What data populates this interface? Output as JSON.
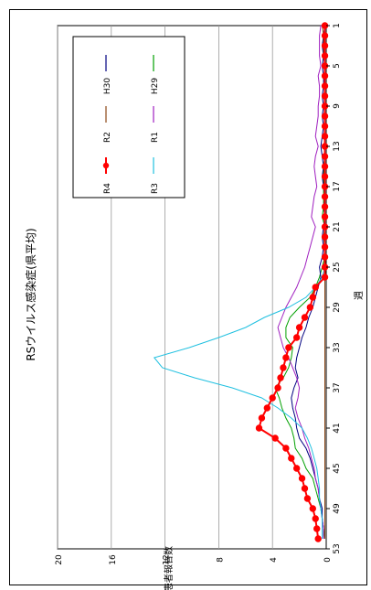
{
  "chart_data": {
    "type": "line",
    "title": "RSウイルス感染症(県平均)",
    "xlabel": "週",
    "ylabel": "患者報告数",
    "ylim": [
      0,
      20
    ],
    "yticks": [
      0,
      4,
      8,
      12,
      16,
      20
    ],
    "xticks": [
      1,
      5,
      9,
      13,
      17,
      21,
      25,
      29,
      33,
      37,
      41,
      45,
      49,
      53
    ],
    "xlim": [
      1,
      53
    ],
    "grid": true,
    "legend_position": "top-right",
    "orientation": "rotated-90-ccw",
    "weeks": [
      1,
      2,
      3,
      4,
      5,
      6,
      7,
      8,
      9,
      10,
      11,
      12,
      13,
      14,
      15,
      16,
      17,
      18,
      19,
      20,
      21,
      22,
      23,
      24,
      25,
      26,
      27,
      28,
      29,
      30,
      31,
      32,
      33,
      34,
      35,
      36,
      37,
      38,
      39,
      40,
      41,
      42,
      43,
      44,
      45,
      46,
      47,
      48,
      49,
      50,
      51,
      52
    ],
    "series": [
      {
        "name": "H29",
        "color": "#00a000",
        "marker": false,
        "values": [
          0.1,
          0.1,
          0.05,
          0.1,
          0.1,
          0.1,
          0.1,
          0.05,
          0.1,
          0.1,
          0.1,
          0.1,
          0.1,
          0.1,
          0.2,
          0.2,
          0.2,
          0.2,
          0.2,
          0.3,
          0.1,
          0.2,
          0.1,
          0.1,
          0.3,
          0.5,
          0.8,
          1.2,
          2.0,
          2.7,
          3.0,
          3.0,
          2.5,
          2.6,
          2.8,
          3.2,
          3.8,
          3.5,
          3.3,
          3.0,
          2.6,
          2.4,
          2.3,
          1.8,
          1.5,
          1.0,
          0.8,
          0.6,
          0.4,
          0.3,
          0.2,
          0.1
        ]
      },
      {
        "name": "H30",
        "color": "#000080",
        "marker": false,
        "values": [
          0.1,
          0.2,
          0.3,
          0.2,
          0.3,
          0.2,
          0.2,
          0.3,
          0.2,
          0.3,
          0.2,
          0.3,
          0.4,
          0.3,
          0.2,
          0.3,
          0.2,
          0.1,
          0.2,
          0.1,
          0.2,
          0.3,
          0.2,
          0.3,
          0.5,
          0.4,
          0.6,
          0.8,
          1.0,
          1.3,
          1.5,
          1.8,
          2.0,
          2.2,
          2.3,
          2.1,
          2.4,
          2.6,
          2.5,
          2.3,
          2.2,
          2.0,
          1.5,
          1.2,
          1.0,
          0.8,
          0.6,
          0.5,
          0.3,
          0.3,
          0.2,
          0.2
        ]
      },
      {
        "name": "R1",
        "color": "#a020c0",
        "marker": false,
        "values": [
          0.4,
          0.5,
          0.5,
          0.5,
          0.4,
          0.6,
          0.5,
          0.5,
          0.6,
          0.6,
          0.7,
          0.8,
          0.6,
          0.8,
          0.9,
          0.8,
          0.7,
          0.9,
          1.0,
          1.1,
          0.8,
          1.0,
          1.2,
          1.4,
          1.6,
          1.9,
          2.2,
          2.6,
          3.0,
          3.3,
          3.6,
          3.4,
          3.2,
          2.8,
          2.5,
          2.2,
          2.0,
          2.1,
          2.3,
          2.1,
          1.8,
          1.6,
          1.3,
          1.1,
          0.9,
          0.8,
          0.6,
          0.5,
          0.4,
          0.3,
          0.2,
          0.2
        ]
      },
      {
        "name": "R2",
        "color": "#8b4513",
        "marker": false,
        "values": [
          0.3,
          0.2,
          0.2,
          0.2,
          0.1,
          0.1,
          0.1,
          0.1,
          0.1,
          0.1,
          0.1,
          0.1,
          0.1,
          0.1,
          0.1,
          0.1,
          0.1,
          0.1,
          0.1,
          0.1,
          0.1,
          0.1,
          0.1,
          0.1,
          0.1,
          0.1,
          0.1,
          0.1,
          0.1,
          0.1,
          0.1,
          0.1,
          0.1,
          0.1,
          0.1,
          0.1,
          0.1,
          0.1,
          0.1,
          0.1,
          0.1,
          0.1,
          0.1,
          0.1,
          0.1,
          0.1,
          0.1,
          0.1,
          0.1,
          0.1,
          0.1,
          0.1
        ]
      },
      {
        "name": "R3",
        "color": "#20c0e0",
        "marker": false,
        "values": [
          0.05,
          0.05,
          0.05,
          0.05,
          0.05,
          0.05,
          0.05,
          0.05,
          0.05,
          0.05,
          0.05,
          0.05,
          0.05,
          0.05,
          0.05,
          0.05,
          0.05,
          0.05,
          0.05,
          0.05,
          0.05,
          0.05,
          0.05,
          0.05,
          0.1,
          0.3,
          0.8,
          1.5,
          2.8,
          4.6,
          6.0,
          8.0,
          10.2,
          12.8,
          12.2,
          9.8,
          7.0,
          4.8,
          3.6,
          2.6,
          1.8,
          1.4,
          1.1,
          0.9,
          0.7,
          0.6,
          0.5,
          0.5,
          0.4,
          0.3,
          0.3,
          0.3
        ]
      },
      {
        "name": "R4",
        "color": "#ff0000",
        "marker": true,
        "values": [
          0.1,
          0.1,
          0.1,
          0.1,
          0.1,
          0.1,
          0.1,
          0.1,
          0.1,
          0.1,
          0.1,
          0.1,
          0.1,
          0.1,
          0.1,
          0.1,
          0.1,
          0.1,
          0.1,
          0.1,
          0.1,
          0.1,
          0.1,
          0.1,
          0.1,
          0.1,
          0.8,
          1.0,
          1.2,
          1.6,
          2.0,
          2.2,
          2.8,
          3.0,
          3.2,
          3.4,
          3.6,
          4.0,
          4.4,
          4.8,
          5.0,
          3.8,
          3.0,
          2.6,
          2.2,
          1.8,
          1.6,
          1.4,
          1.0,
          0.8,
          0.7,
          0.6
        ]
      }
    ]
  }
}
